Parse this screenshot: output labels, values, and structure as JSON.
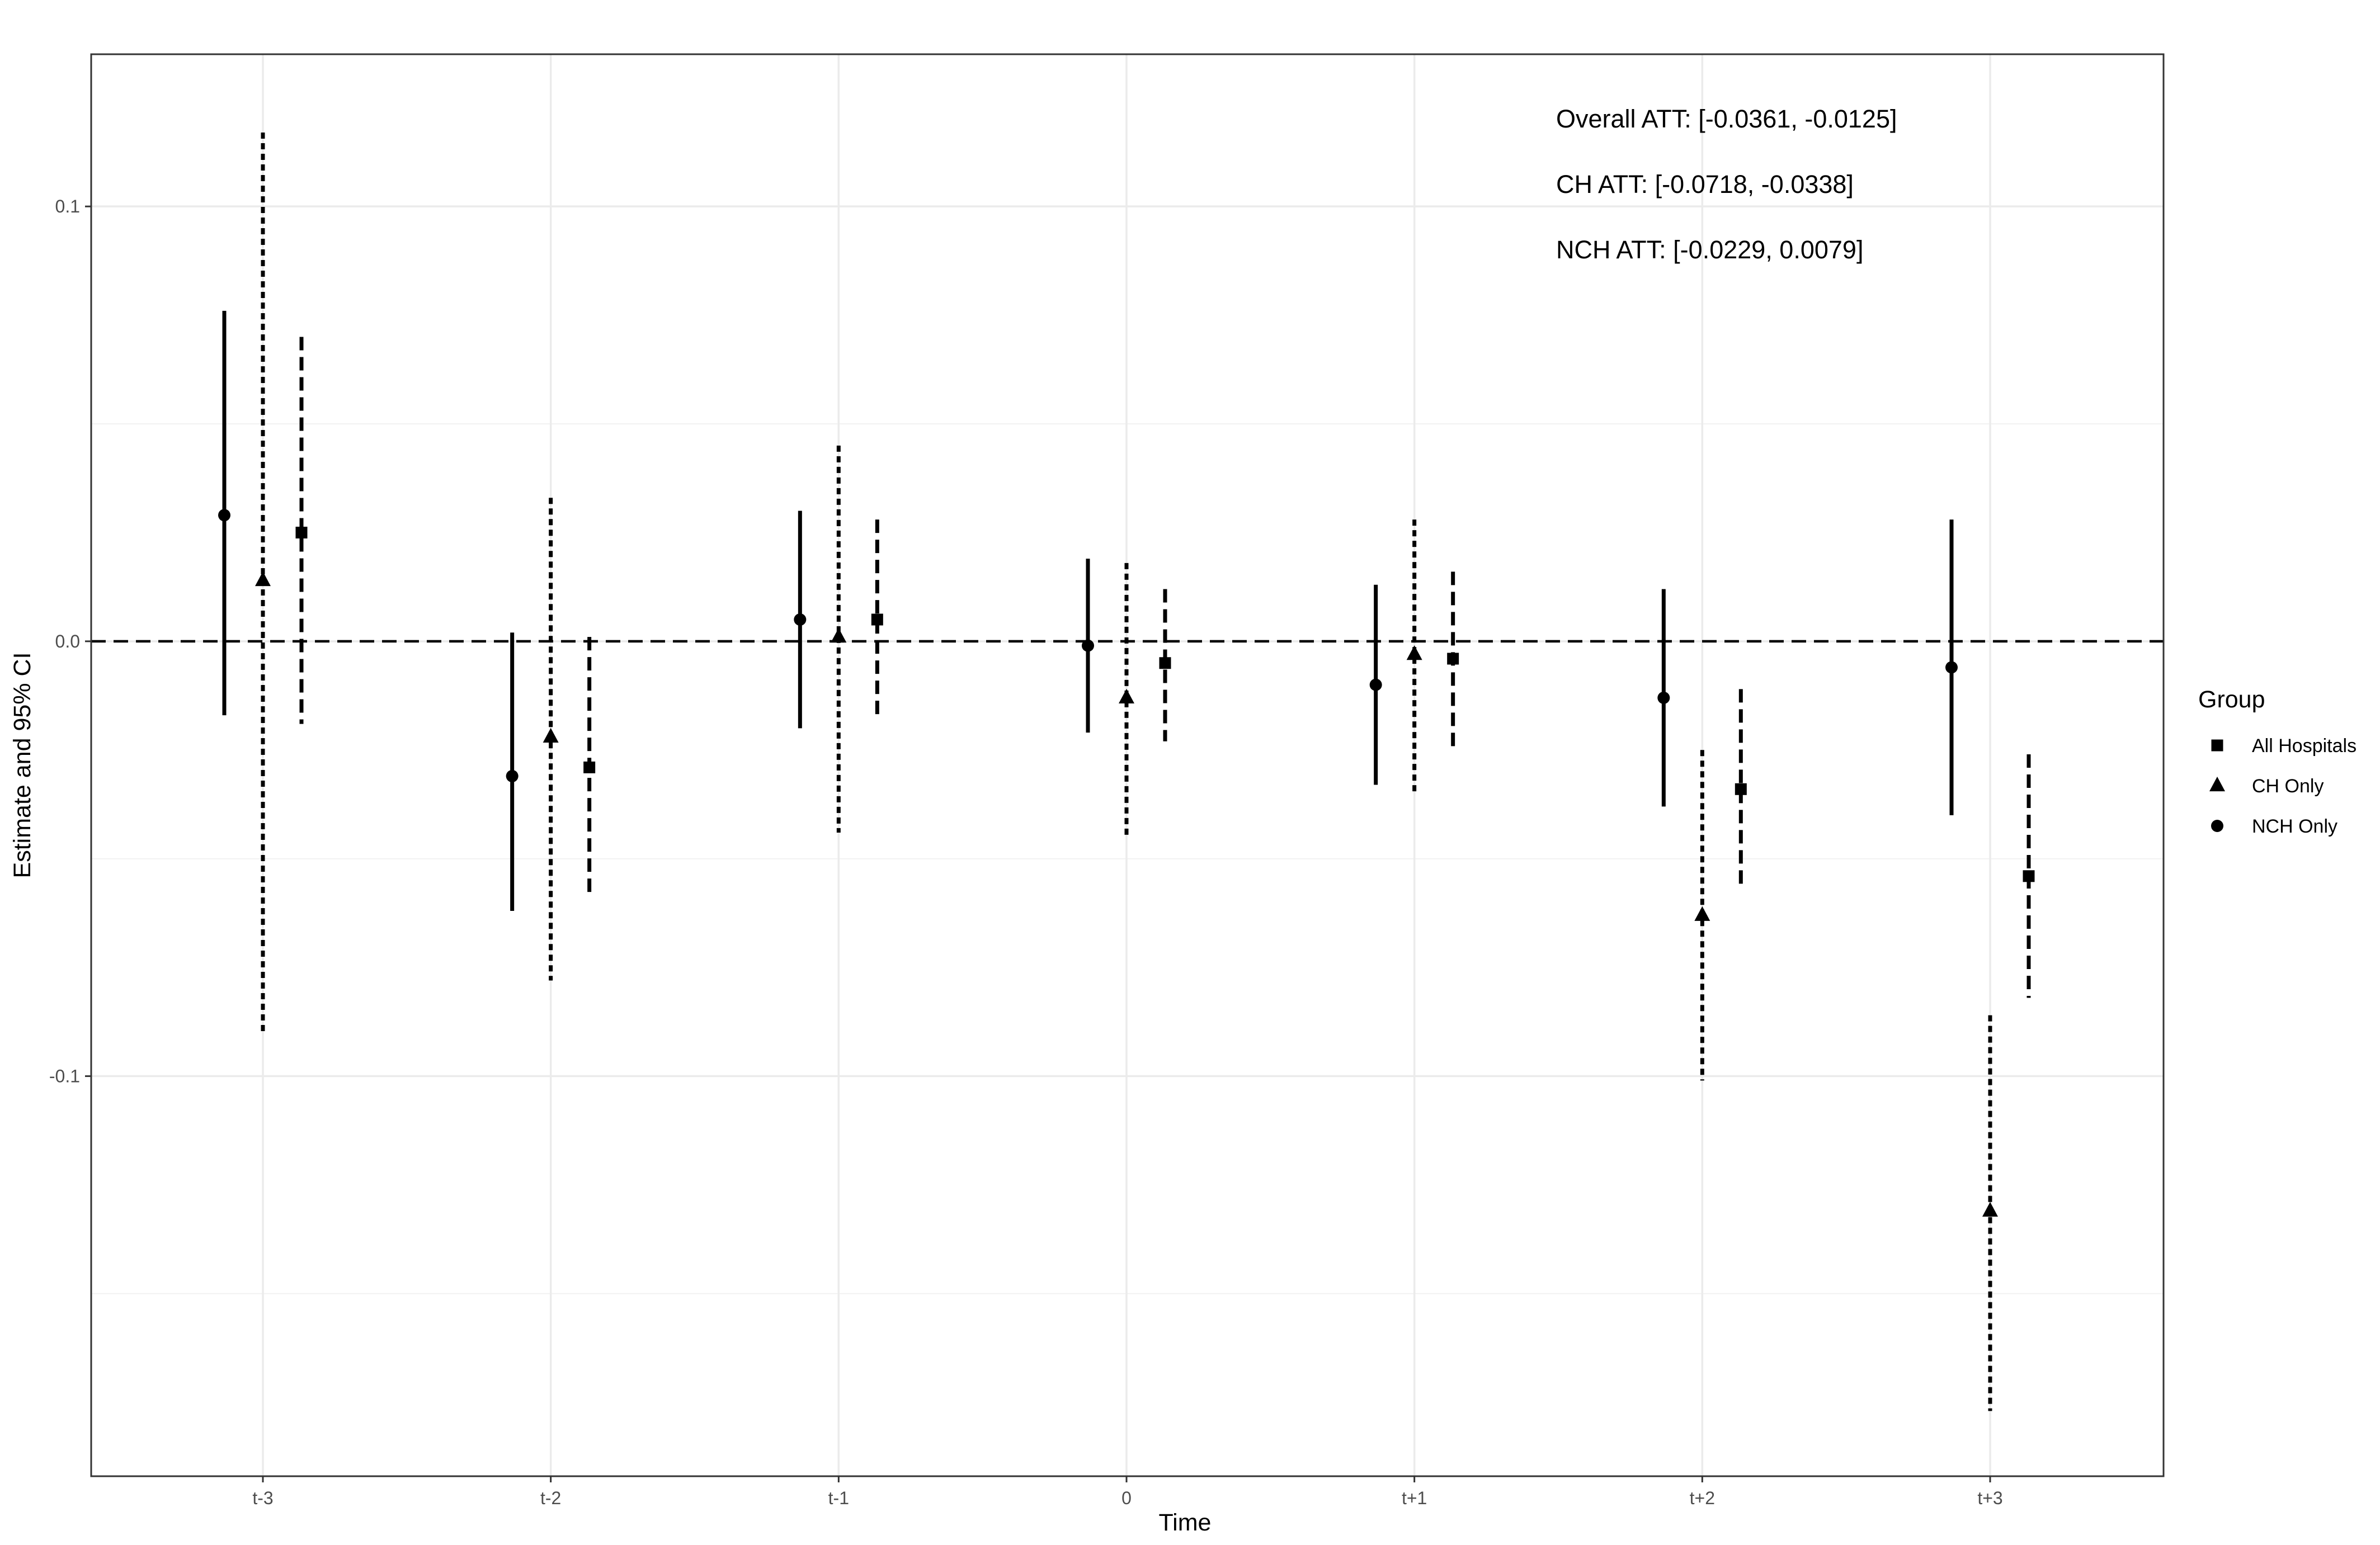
{
  "chart_data": {
    "type": "scatter",
    "title": "",
    "xlabel": "Time",
    "ylabel": "Estimate and 95% CI",
    "categories": [
      "t-3",
      "t-2",
      "t-1",
      "0",
      "t+1",
      "t+2",
      "t+3"
    ],
    "ylim": [
      -0.192,
      0.135
    ],
    "yticks": [
      0.1,
      0.0,
      -0.1
    ],
    "ytick_labels": [
      "0.1",
      "0.0",
      "-0.1"
    ],
    "zero_line": 0,
    "grid": true,
    "legend": {
      "title": "Group",
      "position": "right",
      "entries": [
        {
          "label": "All Hospitals",
          "shape": "square"
        },
        {
          "label": "CH Only",
          "shape": "triangle"
        },
        {
          "label": "NCH Only",
          "shape": "circle"
        }
      ]
    },
    "annotations": [
      "Overall ATT: [-0.0361, -0.0125]",
      "CH ATT: [-0.0718, -0.0338]",
      "NCH ATT: [-0.0229, 0.0079]"
    ],
    "series": [
      {
        "name": "NCH Only",
        "shape": "circle",
        "line": "solid",
        "offset": -1,
        "estimate": [
          0.029,
          -0.031,
          0.005,
          -0.001,
          -0.01,
          -0.013,
          -0.006
        ],
        "lower": [
          -0.017,
          -0.062,
          -0.02,
          -0.021,
          -0.033,
          -0.038,
          -0.04
        ],
        "upper": [
          0.076,
          0.002,
          0.03,
          0.019,
          0.013,
          0.012,
          0.028
        ]
      },
      {
        "name": "CH Only",
        "shape": "triangle",
        "line": "dotted",
        "offset": 0,
        "estimate": [
          0.014,
          -0.022,
          0.001,
          -0.013,
          -0.003,
          -0.063,
          -0.131
        ],
        "lower": [
          -0.09,
          -0.078,
          -0.044,
          -0.045,
          -0.035,
          -0.101,
          -0.177
        ],
        "upper": [
          0.117,
          0.033,
          0.045,
          0.018,
          0.028,
          -0.025,
          -0.086
        ]
      },
      {
        "name": "All Hospitals",
        "shape": "square",
        "line": "dashed",
        "offset": 1,
        "estimate": [
          0.025,
          -0.029,
          0.005,
          -0.005,
          -0.004,
          -0.034,
          -0.054
        ],
        "lower": [
          -0.019,
          -0.059,
          -0.018,
          -0.023,
          -0.025,
          -0.056,
          -0.082
        ],
        "upper": [
          0.07,
          0.001,
          0.028,
          0.012,
          0.016,
          -0.011,
          -0.026
        ]
      }
    ]
  }
}
